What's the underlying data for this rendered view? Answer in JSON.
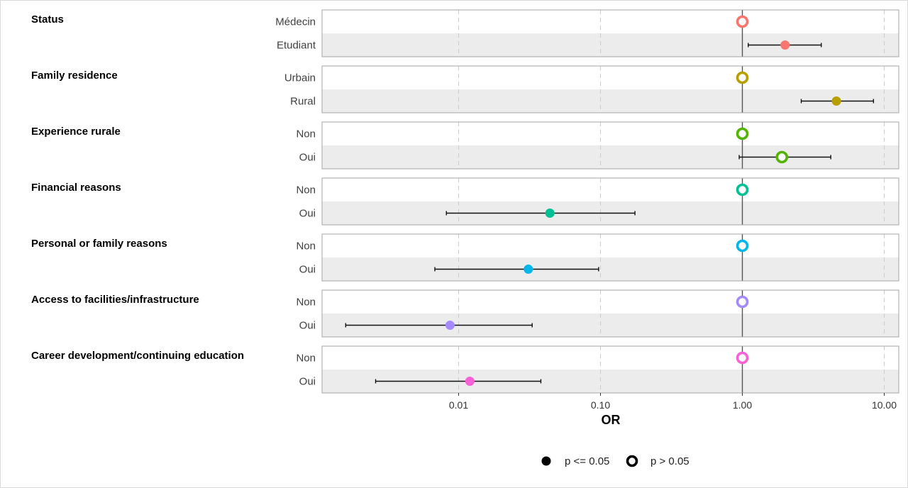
{
  "chart_data": {
    "type": "forest",
    "xlabel": "OR",
    "xscale": "log",
    "xlim": [
      0.0012,
      13.5
    ],
    "x_ticks": [
      0.01,
      0.1,
      1,
      10
    ],
    "x_tick_labels": [
      "0.01",
      "0.10",
      "1.00",
      "10.00"
    ],
    "reference_line": 1,
    "legend": {
      "placement": "bottom",
      "items": [
        {
          "label": "p <= 0.05",
          "marker": "filled"
        },
        {
          "label": "p > 0.05",
          "marker": "open"
        }
      ]
    },
    "groups": [
      {
        "title": "Status",
        "color": "#F8766D",
        "levels": [
          {
            "label": "Médecin",
            "or": 1.0,
            "ci": null,
            "significant": false
          },
          {
            "label": "Etudiant",
            "or": 2.0,
            "ci": [
              1.1,
              3.6
            ],
            "significant": true
          }
        ]
      },
      {
        "title": "Family residence",
        "color": "#B79F00",
        "levels": [
          {
            "label": "Urbain",
            "or": 1.0,
            "ci": null,
            "significant": false
          },
          {
            "label": "Rural",
            "or": 4.6,
            "ci": [
              2.6,
              8.4
            ],
            "significant": true
          }
        ]
      },
      {
        "title": "Experience rurale",
        "color": "#53B400",
        "levels": [
          {
            "label": "Non",
            "or": 1.0,
            "ci": null,
            "significant": false
          },
          {
            "label": "Oui",
            "or": 1.9,
            "ci": [
              0.95,
              4.2
            ],
            "significant": false
          }
        ]
      },
      {
        "title": "Financial reasons",
        "color": "#00C094",
        "levels": [
          {
            "label": "Non",
            "or": 1.0,
            "ci": null,
            "significant": false
          },
          {
            "label": "Oui",
            "or": 0.044,
            "ci": [
              0.0082,
              0.175
            ],
            "significant": true
          }
        ]
      },
      {
        "title": "Personal or family reasons",
        "color": "#00B6EB",
        "levels": [
          {
            "label": "Non",
            "or": 1.0,
            "ci": null,
            "significant": false
          },
          {
            "label": "Oui",
            "or": 0.031,
            "ci": [
              0.0068,
              0.097
            ],
            "significant": true
          }
        ]
      },
      {
        "title": "Access to facilities/infrastructure",
        "color": "#A58AFF",
        "levels": [
          {
            "label": "Non",
            "or": 1.0,
            "ci": null,
            "significant": false
          },
          {
            "label": "Oui",
            "or": 0.0087,
            "ci": [
              0.0016,
              0.033
            ],
            "significant": true
          }
        ]
      },
      {
        "title": "Career development/continuing education",
        "color": "#FB61D7",
        "levels": [
          {
            "label": "Non",
            "or": 1.0,
            "ci": null,
            "significant": false
          },
          {
            "label": "Oui",
            "or": 0.012,
            "ci": [
              0.0026,
              0.038
            ],
            "significant": true
          }
        ]
      }
    ]
  }
}
